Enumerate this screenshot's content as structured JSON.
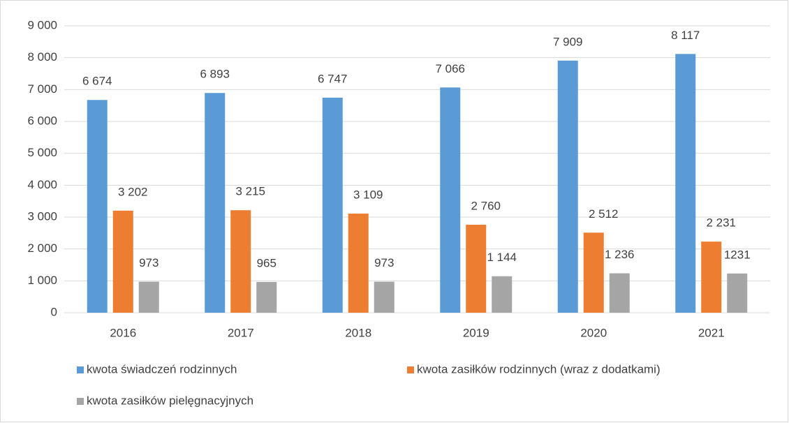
{
  "chart_data": {
    "type": "bar",
    "categories": [
      "2016",
      "2017",
      "2018",
      "2019",
      "2020",
      "2021"
    ],
    "series": [
      {
        "name": "kwota świadczeń rodzinnych",
        "color": "#5b9bd5",
        "values": [
          6674,
          6893,
          6747,
          7066,
          7909,
          8117
        ],
        "value_labels": [
          "6 674",
          "6 893",
          "6 747",
          "7 066",
          "7 909",
          "8 117"
        ]
      },
      {
        "name": "kwota zasiłków rodzinnych (wraz z dodatkami)",
        "color": "#ed7d31",
        "values": [
          3202,
          3215,
          3109,
          2760,
          2512,
          2231
        ],
        "value_labels": [
          "3 202",
          "3 215",
          "3 109",
          "2 760",
          "2 512",
          "2 231"
        ]
      },
      {
        "name": "kwota zasiłków pielęgnacyjnych",
        "color": "#a5a5a5",
        "values": [
          973,
          965,
          973,
          1144,
          1236,
          1231
        ],
        "value_labels": [
          "973",
          "965",
          "973",
          "1 144",
          "1 236",
          "1231"
        ]
      }
    ],
    "ylim": [
      0,
      9000
    ],
    "yticks": [
      0,
      {
        "value": 1000,
        "label": "1 000"
      },
      {
        "value": 2000,
        "label": "2 000"
      },
      {
        "value": 3000,
        "label": "3 000"
      },
      {
        "value": 4000,
        "label": "4 000"
      },
      {
        "value": 5000,
        "label": "5 000"
      },
      {
        "value": 6000,
        "label": "6 000"
      },
      {
        "value": 7000,
        "label": "7 000"
      },
      {
        "value": 8000,
        "label": "8 000"
      },
      {
        "value": 9000,
        "label": "9 000"
      }
    ],
    "grid": true
  }
}
